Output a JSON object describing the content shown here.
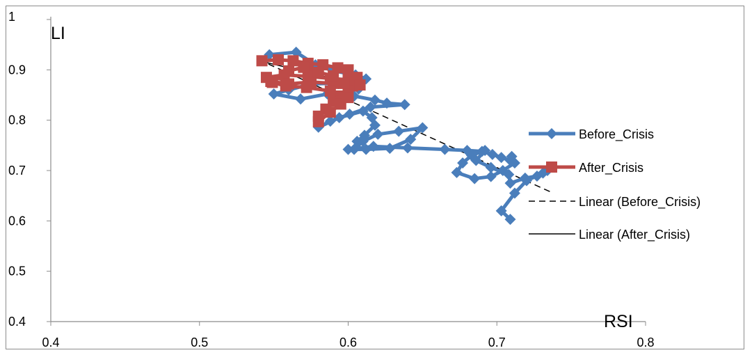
{
  "chart_data": {
    "type": "scatter",
    "xlabel": "RSI",
    "ylabel": "LI",
    "xlim": [
      0.4,
      0.8
    ],
    "ylim": [
      0.4,
      1.0
    ],
    "x_ticks": [
      "0.4",
      "0.5",
      "0.6",
      "0.7",
      "0.8"
    ],
    "y_ticks": [
      "0.4",
      "0.5",
      "0.6",
      "0.7",
      "0.8",
      "0.9",
      "1"
    ],
    "grid": false,
    "legend_position": "right",
    "series": [
      {
        "name": "Before_Crisis",
        "color": "#4a7ebb",
        "marker": "diamond",
        "line": "solid-thick",
        "points": [
          [
            0.547,
            0.93
          ],
          [
            0.565,
            0.935
          ],
          [
            0.578,
            0.91
          ],
          [
            0.59,
            0.898
          ],
          [
            0.605,
            0.89
          ],
          [
            0.612,
            0.882
          ],
          [
            0.607,
            0.862
          ],
          [
            0.596,
            0.874
          ],
          [
            0.575,
            0.872
          ],
          [
            0.56,
            0.86
          ],
          [
            0.55,
            0.852
          ],
          [
            0.568,
            0.842
          ],
          [
            0.586,
            0.852
          ],
          [
            0.604,
            0.848
          ],
          [
            0.618,
            0.84
          ],
          [
            0.626,
            0.834
          ],
          [
            0.638,
            0.831
          ],
          [
            0.615,
            0.826
          ],
          [
            0.601,
            0.812
          ],
          [
            0.588,
            0.798
          ],
          [
            0.58,
            0.786
          ],
          [
            0.594,
            0.805
          ],
          [
            0.61,
            0.818
          ],
          [
            0.616,
            0.805
          ],
          [
            0.618,
            0.79
          ],
          [
            0.611,
            0.77
          ],
          [
            0.606,
            0.758
          ],
          [
            0.604,
            0.742
          ],
          [
            0.61,
            0.758
          ],
          [
            0.62,
            0.772
          ],
          [
            0.634,
            0.778
          ],
          [
            0.65,
            0.785
          ],
          [
            0.642,
            0.762
          ],
          [
            0.628,
            0.744
          ],
          [
            0.612,
            0.742
          ],
          [
            0.6,
            0.742
          ],
          [
            0.617,
            0.748
          ],
          [
            0.64,
            0.745
          ],
          [
            0.665,
            0.742
          ],
          [
            0.68,
            0.74
          ],
          [
            0.69,
            0.738
          ],
          [
            0.697,
            0.732
          ],
          [
            0.703,
            0.726
          ],
          [
            0.709,
            0.72
          ],
          [
            0.71,
            0.728
          ],
          [
            0.712,
            0.715
          ],
          [
            0.704,
            0.7
          ],
          [
            0.696,
            0.688
          ],
          [
            0.685,
            0.684
          ],
          [
            0.673,
            0.696
          ],
          [
            0.677,
            0.715
          ],
          [
            0.683,
            0.73
          ],
          [
            0.692,
            0.74
          ],
          [
            0.686,
            0.72
          ],
          [
            0.696,
            0.706
          ],
          [
            0.708,
            0.692
          ],
          [
            0.709,
            0.675
          ],
          [
            0.719,
            0.685
          ],
          [
            0.727,
            0.689
          ],
          [
            0.734,
            0.7
          ],
          [
            0.731,
            0.695
          ],
          [
            0.72,
            0.68
          ],
          [
            0.712,
            0.655
          ],
          [
            0.703,
            0.62
          ],
          [
            0.709,
            0.603
          ]
        ]
      },
      {
        "name": "After_Crisis",
        "color": "#be4b48",
        "marker": "square",
        "line": "solid-thick",
        "points": [
          [
            0.542,
            0.918
          ],
          [
            0.553,
            0.92
          ],
          [
            0.563,
            0.918
          ],
          [
            0.573,
            0.913
          ],
          [
            0.583,
            0.91
          ],
          [
            0.593,
            0.904
          ],
          [
            0.6,
            0.9
          ],
          [
            0.606,
            0.885
          ],
          [
            0.6,
            0.88
          ],
          [
            0.588,
            0.883
          ],
          [
            0.573,
            0.887
          ],
          [
            0.557,
            0.89
          ],
          [
            0.545,
            0.885
          ],
          [
            0.548,
            0.877
          ],
          [
            0.56,
            0.872
          ],
          [
            0.575,
            0.876
          ],
          [
            0.59,
            0.873
          ],
          [
            0.603,
            0.868
          ],
          [
            0.6,
            0.858
          ],
          [
            0.594,
            0.848
          ],
          [
            0.59,
            0.838
          ],
          [
            0.585,
            0.822
          ],
          [
            0.58,
            0.808
          ],
          [
            0.58,
            0.797
          ],
          [
            0.588,
            0.816
          ],
          [
            0.595,
            0.832
          ],
          [
            0.6,
            0.845
          ],
          [
            0.588,
            0.858
          ],
          [
            0.572,
            0.865
          ],
          [
            0.558,
            0.868
          ],
          [
            0.549,
            0.875
          ],
          [
            0.56,
            0.898
          ],
          [
            0.57,
            0.905
          ],
          [
            0.58,
            0.895
          ],
          [
            0.59,
            0.888
          ],
          [
            0.597,
            0.873
          ],
          [
            0.608,
            0.87
          ]
        ]
      },
      {
        "name": "Linear (Before_Crisis)",
        "color": "#000000",
        "line": "dashed",
        "points": [
          [
            0.54,
            0.92
          ],
          [
            0.738,
            0.655
          ]
        ]
      },
      {
        "name": "Linear (After_Crisis)",
        "color": "#000000",
        "line": "solid-thin",
        "points": [
          [
            0.54,
            0.918
          ],
          [
            0.608,
            0.87
          ]
        ]
      }
    ]
  }
}
